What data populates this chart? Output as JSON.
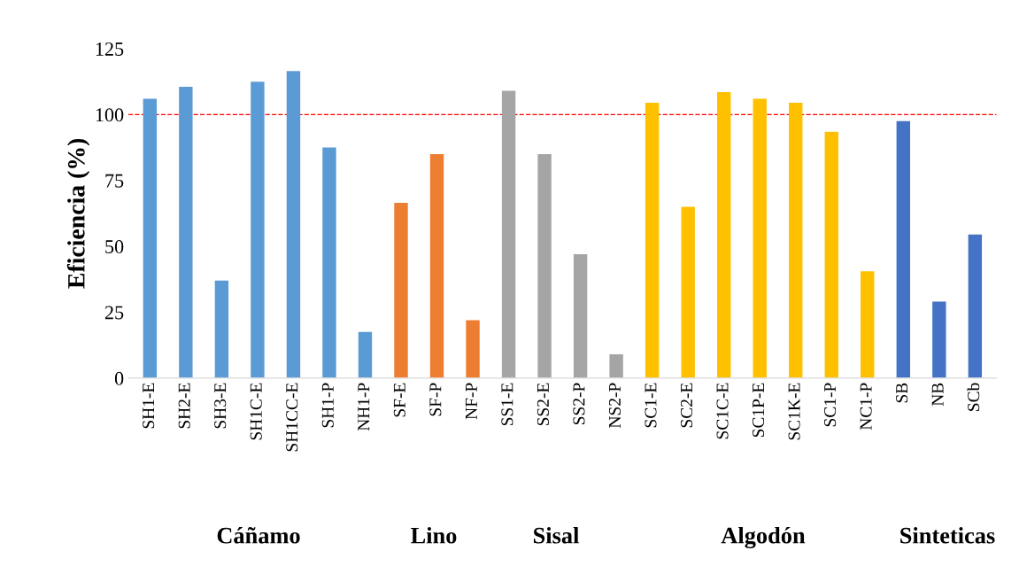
{
  "chart_data": {
    "type": "bar",
    "ylabel": "Eficiencia (%)",
    "categories": [
      "SH1-E",
      "SH2-E",
      "SH3-E",
      "SH1C-E",
      "SH1CC-E",
      "SH1-P",
      "NH1-P",
      "SF-E",
      "SF-P",
      "NF-P",
      "SS1-E",
      "SS2-E",
      "SS2-P",
      "NS2-P",
      "SC1-E",
      "SC2-E",
      "SC1C-E",
      "SC1P-E",
      "SC1K-E",
      "SC1-P",
      "NC1-P",
      "SB",
      "NB",
      "SCb"
    ],
    "values": [
      106,
      110.5,
      37,
      112.5,
      116.5,
      87.5,
      17.5,
      66.5,
      85,
      22,
      109,
      85,
      47,
      9,
      104.5,
      65,
      108.5,
      106,
      104.5,
      93.5,
      40.5,
      97.5,
      29,
      54.5
    ],
    "colors": [
      "#5b9bd5",
      "#5b9bd5",
      "#5b9bd5",
      "#5b9bd5",
      "#5b9bd5",
      "#5b9bd5",
      "#5b9bd5",
      "#ed7d31",
      "#ed7d31",
      "#ed7d31",
      "#a5a5a5",
      "#a5a5a5",
      "#a5a5a5",
      "#a5a5a5",
      "#ffc000",
      "#ffc000",
      "#ffc000",
      "#ffc000",
      "#ffc000",
      "#ffc000",
      "#ffc000",
      "#4472c4",
      "#4472c4",
      "#4472c4"
    ],
    "ylim": [
      0,
      125
    ],
    "yticks": [
      0,
      25,
      50,
      75,
      100,
      125
    ],
    "grid": false,
    "legend": false,
    "ref_lines": [
      {
        "axis": "y",
        "value": 100,
        "color": "#ff0000",
        "line_style": "dashed"
      }
    ],
    "annotations": [
      "Cáñamo",
      "Lino",
      "Sisal",
      "Algodón",
      "Sinteticas"
    ]
  }
}
